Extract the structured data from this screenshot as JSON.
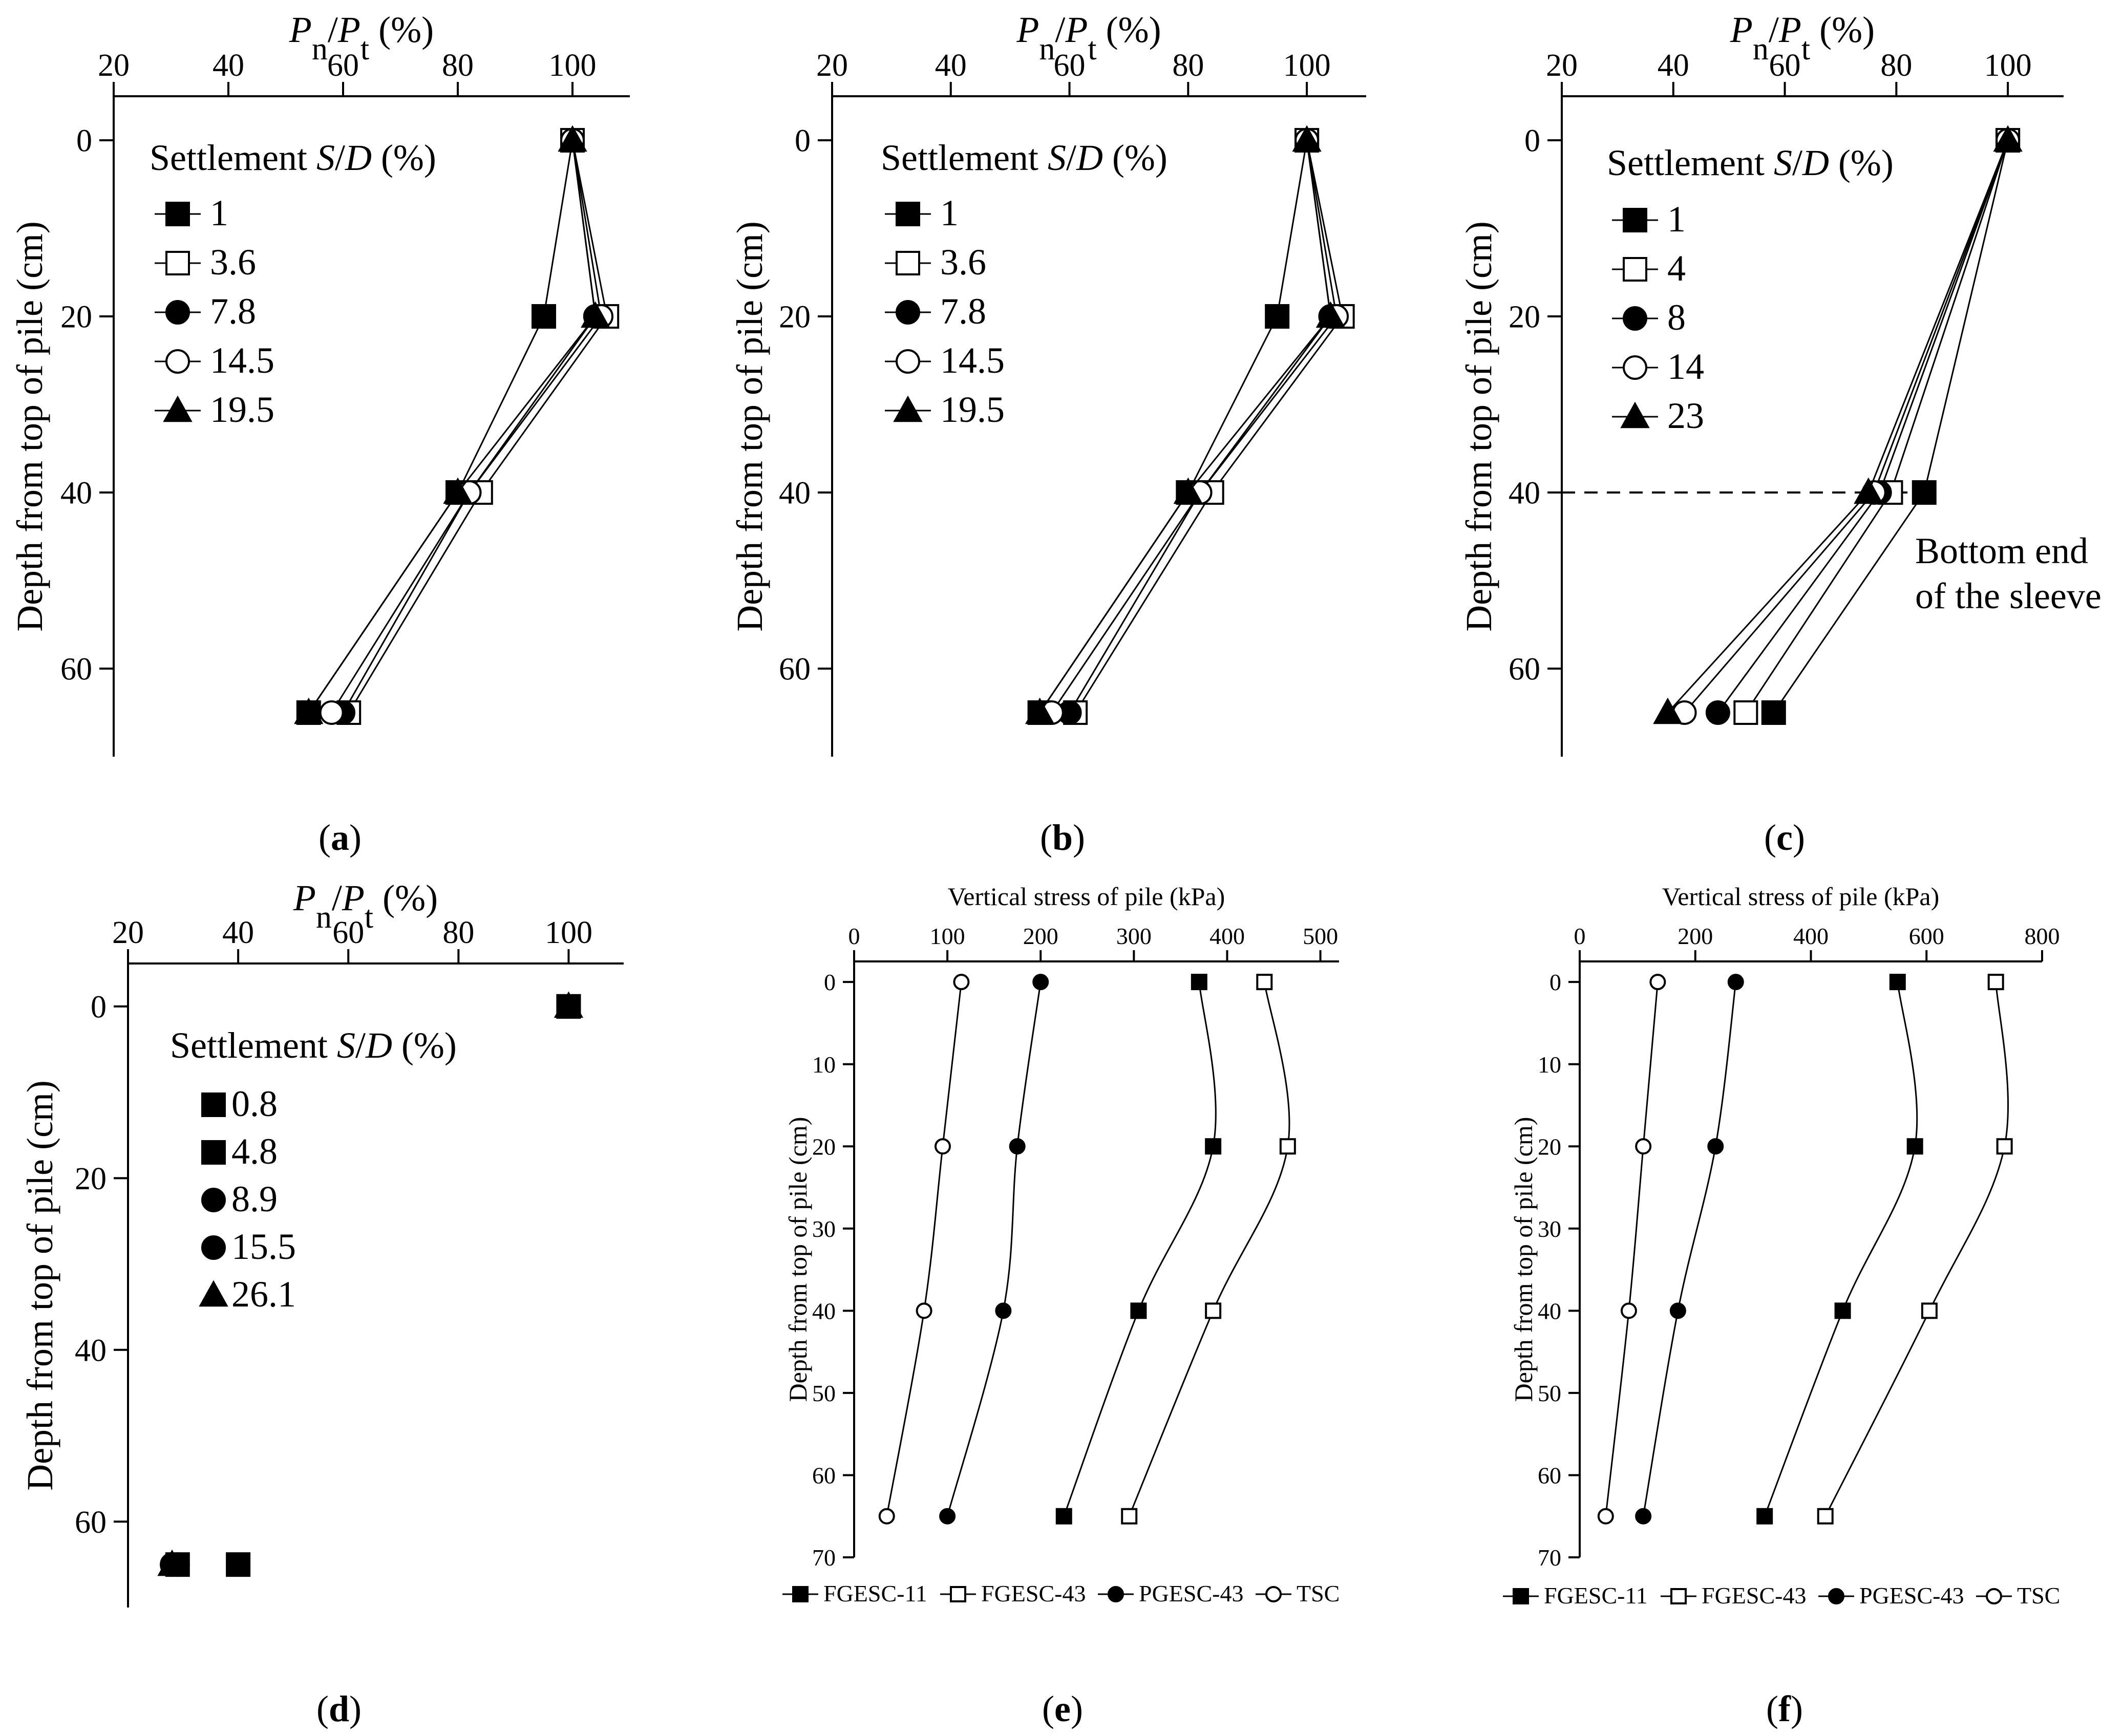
{
  "figure": {
    "panels": [
      "(a)",
      "(b)",
      "(c)",
      "(d)",
      "(e)",
      "(f)"
    ]
  },
  "chart_data": [
    {
      "id": "a",
      "type": "line",
      "panel_label": "(a)",
      "xlabel": "Pn/Pt (%)",
      "ylabel": "Depth from top of pile (cm)",
      "xlim": [
        20,
        110
      ],
      "ylim": [
        70,
        -5
      ],
      "xticks": [
        20,
        40,
        60,
        80,
        100
      ],
      "yticks": [
        0,
        20,
        40,
        60
      ],
      "x_axis_position": "top",
      "legend_title": "Settlement S/D (%)",
      "legend_position": "top-left",
      "series": [
        {
          "name": "1",
          "marker": "square-filled",
          "x": [
            100,
            95,
            80,
            54
          ],
          "y": [
            0,
            20,
            40,
            65
          ]
        },
        {
          "name": "3.6",
          "marker": "square-open",
          "x": [
            100,
            106,
            84,
            61
          ],
          "y": [
            0,
            20,
            40,
            65
          ]
        },
        {
          "name": "7.8",
          "marker": "circle-filled",
          "x": [
            100,
            104,
            82,
            60
          ],
          "y": [
            0,
            20,
            40,
            65
          ]
        },
        {
          "name": "14.5",
          "marker": "circle-open",
          "x": [
            100,
            105,
            82,
            58
          ],
          "y": [
            0,
            20,
            40,
            65
          ]
        },
        {
          "name": "19.5",
          "marker": "triangle-filled",
          "x": [
            100,
            104,
            80,
            54
          ],
          "y": [
            0,
            20,
            40,
            65
          ]
        }
      ]
    },
    {
      "id": "b",
      "type": "line",
      "panel_label": "(b)",
      "xlabel": "Pn/Pt (%)",
      "ylabel": "Depth from top of pile (cm)",
      "xlim": [
        20,
        110
      ],
      "ylim": [
        70,
        -5
      ],
      "xticks": [
        20,
        40,
        60,
        80,
        100
      ],
      "yticks": [
        0,
        20,
        40,
        60
      ],
      "x_axis_position": "top",
      "legend_title": "Settlement S/D (%)",
      "legend_position": "top-left",
      "series": [
        {
          "name": "1",
          "marker": "square-filled",
          "x": [
            100,
            95,
            80,
            55
          ],
          "y": [
            0,
            20,
            40,
            65
          ]
        },
        {
          "name": "3.6",
          "marker": "square-open",
          "x": [
            100,
            106,
            84,
            61
          ],
          "y": [
            0,
            20,
            40,
            65
          ]
        },
        {
          "name": "7.8",
          "marker": "circle-filled",
          "x": [
            100,
            104,
            82,
            60
          ],
          "y": [
            0,
            20,
            40,
            65
          ]
        },
        {
          "name": "14.5",
          "marker": "circle-open",
          "x": [
            100,
            105,
            82,
            57
          ],
          "y": [
            0,
            20,
            40,
            65
          ]
        },
        {
          "name": "19.5",
          "marker": "triangle-filled",
          "x": [
            100,
            104,
            80,
            55
          ],
          "y": [
            0,
            20,
            40,
            65
          ]
        }
      ]
    },
    {
      "id": "c",
      "type": "line",
      "panel_label": "(c)",
      "xlabel": "Pn/Pt (%)",
      "ylabel": "Depth from top of pile (cm)",
      "xlim": [
        20,
        110
      ],
      "ylim": [
        70,
        -5
      ],
      "xticks": [
        20,
        40,
        60,
        80,
        100
      ],
      "yticks": [
        0,
        20,
        40,
        60
      ],
      "x_axis_position": "top",
      "legend_title": "Settlement S/D (%)",
      "legend_position": "top-left",
      "reference_line": {
        "y": 40,
        "style": "dashed"
      },
      "annotation": [
        "Bottom end",
        "of the sleeve"
      ],
      "series": [
        {
          "name": "1",
          "marker": "square-filled",
          "x": [
            100,
            85,
            58
          ],
          "y": [
            0,
            40,
            65
          ]
        },
        {
          "name": "4",
          "marker": "square-open",
          "x": [
            100,
            79,
            53
          ],
          "y": [
            0,
            40,
            65
          ]
        },
        {
          "name": "8",
          "marker": "circle-filled",
          "x": [
            100,
            77,
            48
          ],
          "y": [
            0,
            40,
            65
          ]
        },
        {
          "name": "14",
          "marker": "circle-open",
          "x": [
            100,
            76,
            42
          ],
          "y": [
            0,
            40,
            65
          ]
        },
        {
          "name": "23",
          "marker": "triangle-filled",
          "x": [
            100,
            75,
            39
          ],
          "y": [
            0,
            40,
            65
          ]
        }
      ]
    },
    {
      "id": "d",
      "type": "scatter",
      "panel_label": "(d)",
      "xlabel": "Pn/Pt (%)",
      "ylabel": "Depth from top of pile (cm)",
      "xlim": [
        20,
        110
      ],
      "ylim": [
        70,
        -5
      ],
      "xticks": [
        20,
        40,
        60,
        80,
        100
      ],
      "yticks": [
        0,
        20,
        40,
        60
      ],
      "x_axis_position": "top",
      "legend_title": "Settlement S/D (%)",
      "legend_position": "top-left",
      "series": [
        {
          "name": "0.8",
          "marker": "square-filled",
          "x": [
            100,
            40
          ],
          "y": [
            0,
            65
          ]
        },
        {
          "name": "4.8",
          "marker": "square-filled",
          "x": [
            100,
            29
          ],
          "y": [
            0,
            65
          ]
        },
        {
          "name": "8.9",
          "marker": "circle-filled",
          "x": [
            100,
            29
          ],
          "y": [
            0,
            65
          ]
        },
        {
          "name": "15.5",
          "marker": "circle-filled",
          "x": [
            100,
            28
          ],
          "y": [
            0,
            65
          ]
        },
        {
          "name": "26.1",
          "marker": "triangle-filled",
          "x": [
            100,
            28
          ],
          "y": [
            0,
            65
          ]
        }
      ]
    },
    {
      "id": "e",
      "type": "line",
      "panel_label": "(e)",
      "xlabel": "Vertical stress of pile (kPa)",
      "ylabel": "Depth from top of pile (cm)",
      "xlim": [
        0,
        520
      ],
      "ylim": [
        70,
        -2.5
      ],
      "xticks": [
        0,
        100,
        200,
        300,
        400,
        500
      ],
      "yticks": [
        0,
        10,
        20,
        30,
        40,
        50,
        60,
        70
      ],
      "x_axis_position": "top",
      "legend_position": "bottom",
      "series": [
        {
          "name": "FGESC-11",
          "marker": "square-filled",
          "x": [
            370,
            385,
            305,
            225
          ],
          "y": [
            0,
            20,
            40,
            65
          ]
        },
        {
          "name": "FGESC-43",
          "marker": "square-open",
          "x": [
            440,
            465,
            385,
            295
          ],
          "y": [
            0,
            20,
            40,
            65
          ]
        },
        {
          "name": "PGESC-43",
          "marker": "circle-filled",
          "x": [
            200,
            175,
            160,
            100
          ],
          "y": [
            0,
            20,
            40,
            65
          ]
        },
        {
          "name": "TSC",
          "marker": "circle-open",
          "x": [
            115,
            95,
            75,
            35
          ],
          "y": [
            0,
            20,
            40,
            65
          ]
        }
      ]
    },
    {
      "id": "f",
      "type": "line",
      "panel_label": "(f)",
      "xlabel": "Vertical stress of pile (kPa)",
      "ylabel": "Depth from top of pile (cm)",
      "xlim": [
        0,
        800
      ],
      "ylim": [
        70,
        -2.5
      ],
      "xticks": [
        0,
        200,
        400,
        600,
        800
      ],
      "yticks": [
        0,
        10,
        20,
        30,
        40,
        50,
        60,
        70
      ],
      "x_axis_position": "top",
      "legend_position": "bottom",
      "series": [
        {
          "name": "FGESC-11",
          "marker": "square-filled",
          "x": [
            550,
            580,
            455,
            320
          ],
          "y": [
            0,
            20,
            40,
            65
          ]
        },
        {
          "name": "FGESC-43",
          "marker": "square-open",
          "x": [
            720,
            735,
            605,
            425
          ],
          "y": [
            0,
            20,
            40,
            65
          ]
        },
        {
          "name": "PGESC-43",
          "marker": "circle-filled",
          "x": [
            270,
            235,
            170,
            110
          ],
          "y": [
            0,
            20,
            40,
            65
          ]
        },
        {
          "name": "TSC",
          "marker": "circle-open",
          "x": [
            135,
            110,
            85,
            45
          ],
          "y": [
            0,
            20,
            40,
            65
          ]
        }
      ]
    }
  ]
}
